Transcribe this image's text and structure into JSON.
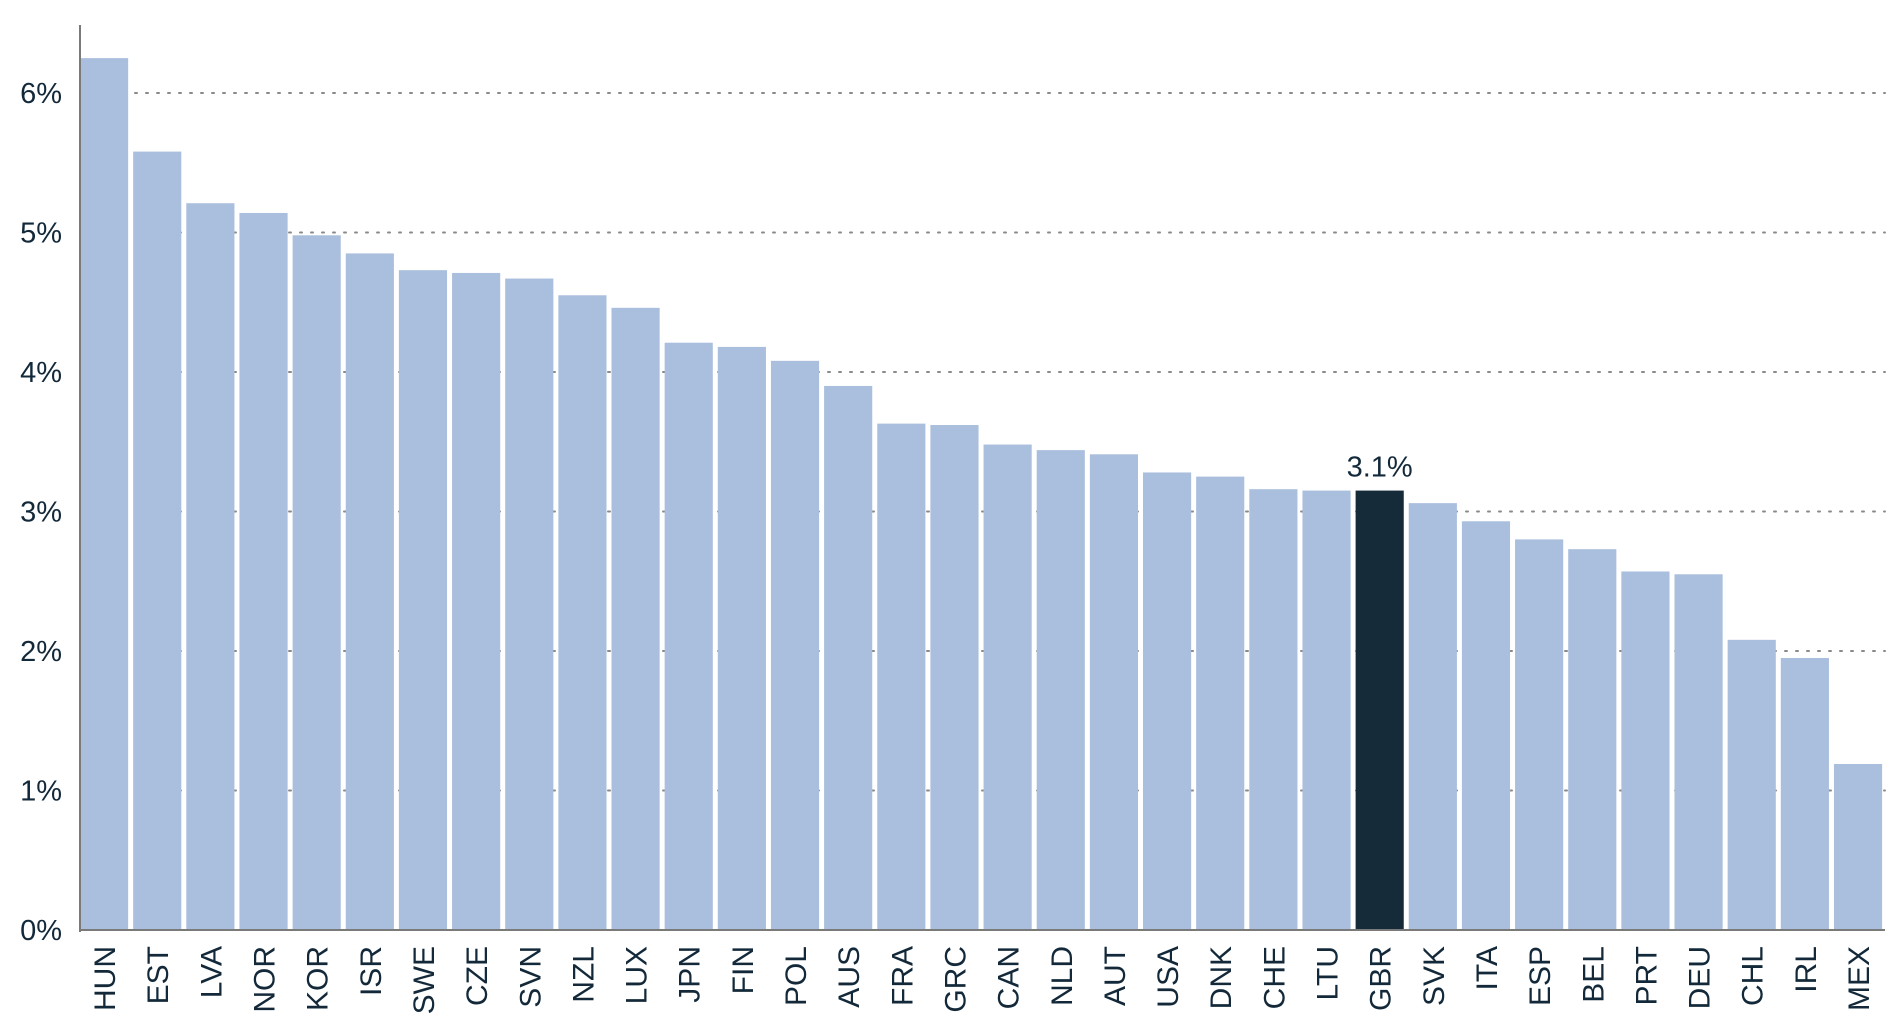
{
  "chart_data": {
    "type": "bar",
    "title": "",
    "xlabel": "",
    "ylabel": "",
    "ylim": [
      0,
      6.5
    ],
    "yticks": [
      0,
      1,
      2,
      3,
      4,
      5,
      6
    ],
    "ytick_labels": [
      "0%",
      "1%",
      "2%",
      "3%",
      "4%",
      "5%",
      "6%"
    ],
    "grid": "horizontal dotted",
    "categories": [
      "HUN",
      "EST",
      "LVA",
      "NOR",
      "KOR",
      "ISR",
      "SWE",
      "CZE",
      "SVN",
      "NZL",
      "LUX",
      "JPN",
      "FIN",
      "POL",
      "AUS",
      "FRA",
      "GRC",
      "CAN",
      "NLD",
      "AUT",
      "USA",
      "DNK",
      "CHE",
      "LTU",
      "GBR",
      "SVK",
      "ITA",
      "ESP",
      "BEL",
      "PRT",
      "DEU",
      "CHL",
      "IRL",
      "MEX"
    ],
    "values": [
      6.25,
      5.58,
      5.21,
      5.14,
      4.98,
      4.85,
      4.73,
      4.71,
      4.67,
      4.55,
      4.46,
      4.21,
      4.18,
      4.08,
      3.9,
      3.63,
      3.62,
      3.48,
      3.44,
      3.41,
      3.28,
      3.25,
      3.16,
      3.15,
      3.15,
      3.06,
      2.93,
      2.8,
      2.73,
      2.57,
      2.55,
      2.08,
      1.95,
      1.19
    ],
    "highlight": {
      "category": "GBR",
      "label": "3.1%"
    },
    "colors": {
      "bar": "#aabfdd",
      "highlight": "#152b39",
      "text": "#13293a"
    }
  }
}
